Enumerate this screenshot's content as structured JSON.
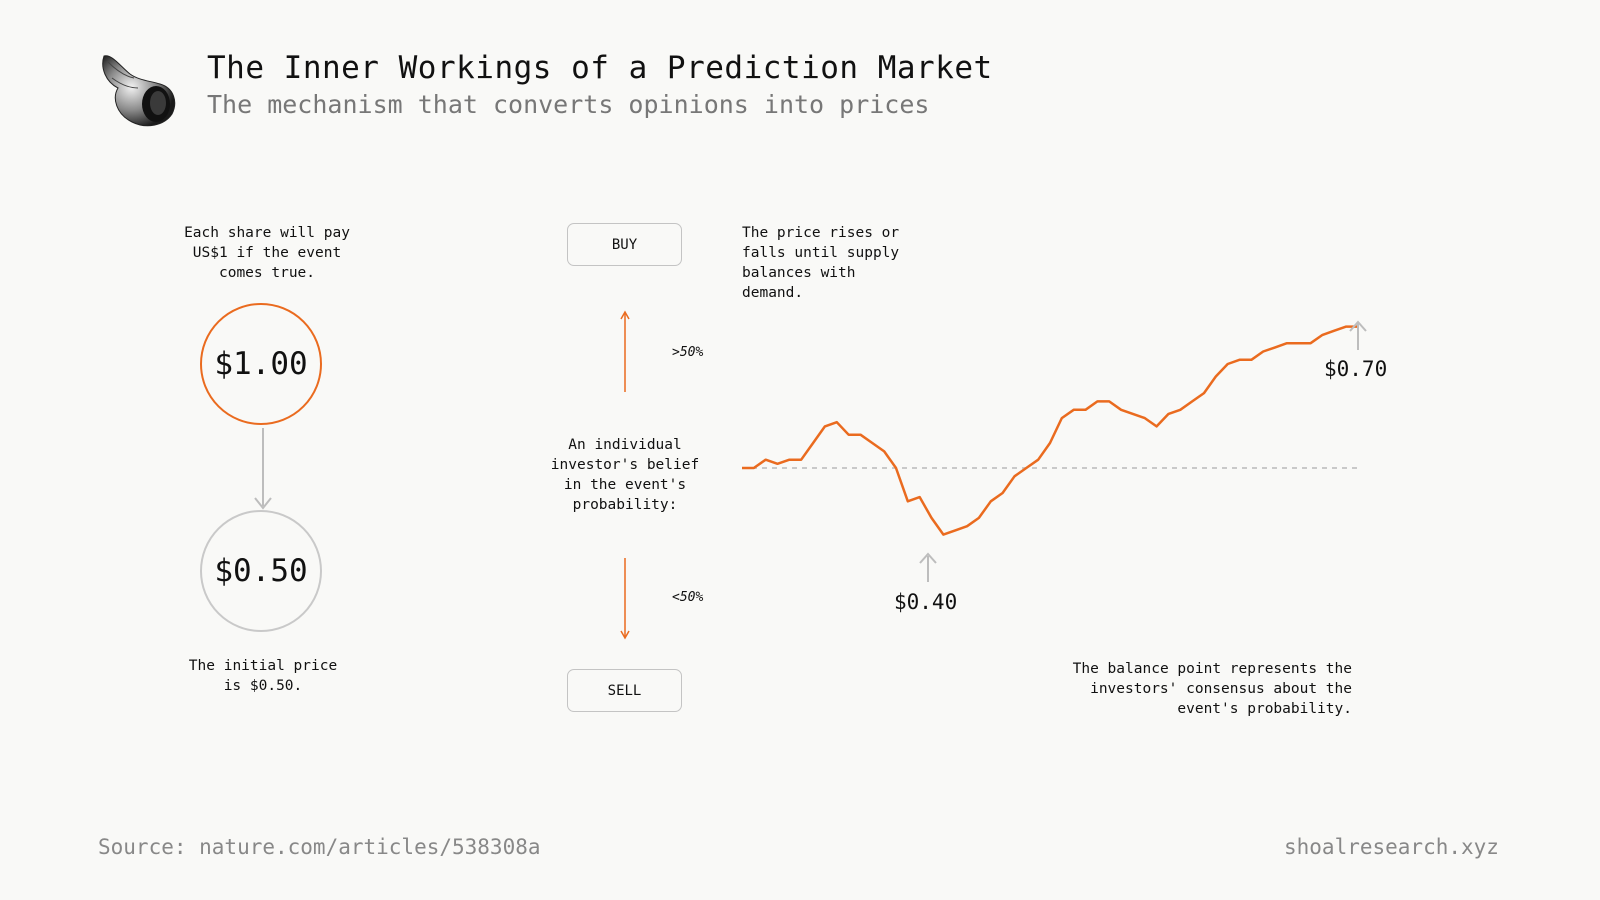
{
  "header": {
    "title": "The Inner Workings of a Prediction Market",
    "subtitle": "The mechanism that converts opinions into prices"
  },
  "left_panel": {
    "top_note": "Each share will pay US$1 if the event comes true.",
    "payout_value": "$1.00",
    "initial_value": "$0.50",
    "bottom_note": "The initial price is $0.50."
  },
  "middle_panel": {
    "buy_label": "BUY",
    "sell_label": "SELL",
    "above_label": ">50%",
    "below_label": "<50%",
    "belief_note": "An individual investor's belief in the event's probability:"
  },
  "right_panel": {
    "top_note": "The price rises or falls until supply balances with demand.",
    "low_price_label": "$0.40",
    "final_price_label": "$0.70",
    "bottom_note": "The balance point represents the investors' consensus about the event's probability."
  },
  "footer": {
    "source": "Source: nature.com/articles/538308a",
    "site": "shoalresearch.xyz"
  },
  "colors": {
    "accent": "#ea6b1f",
    "muted": "#c9c9c9",
    "text": "#111111"
  },
  "chart_data": {
    "type": "line",
    "baseline": 0.5,
    "low": 0.4,
    "final": 0.7,
    "series": [
      {
        "values": [
          0.5,
          0.5,
          0.51,
          0.505,
          0.51,
          0.51,
          0.53,
          0.55,
          0.555,
          0.54,
          0.54,
          0.53,
          0.52,
          0.5,
          0.46,
          0.465,
          0.44,
          0.42,
          0.425,
          0.43,
          0.44,
          0.46,
          0.47,
          0.49,
          0.5,
          0.51,
          0.53,
          0.56,
          0.57,
          0.57,
          0.58,
          0.58,
          0.57,
          0.565,
          0.56,
          0.55,
          0.565,
          0.57,
          0.58,
          0.59,
          0.61,
          0.625,
          0.63,
          0.63,
          0.64,
          0.645,
          0.65,
          0.65,
          0.65,
          0.66,
          0.665,
          0.67,
          0.67
        ]
      }
    ]
  }
}
